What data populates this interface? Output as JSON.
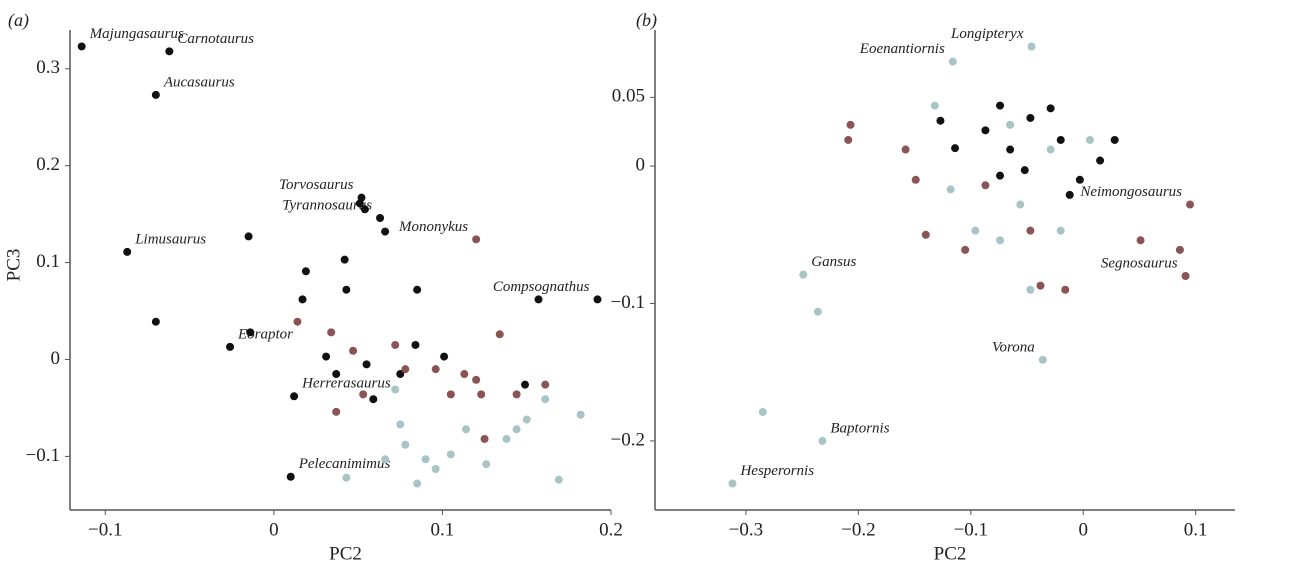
{
  "chart_data": [
    {
      "type": "scatter",
      "panel": "(a)",
      "x_label": "PC2",
      "y_label": "PC3",
      "xlim": [
        -0.115,
        0.2
      ],
      "ylim": [
        -0.145,
        0.34
      ],
      "xticks": [
        {
          "value": -0.1,
          "label": "−0.1"
        },
        0,
        0.1,
        0.2
      ],
      "yticks": [
        {
          "value": -0.1,
          "label": "−0.1"
        },
        0,
        0.1,
        0.2,
        0.3
      ],
      "series": [
        {
          "color": "#111111",
          "x": [
            -0.114,
            -0.062,
            -0.07,
            -0.087,
            0.052,
            0.063,
            0.192,
            -0.026,
            0.012,
            0.01,
            -0.015,
            0.051,
            0.054,
            0.066,
            0.019,
            0.042,
            0.085,
            0.043,
            0.017,
            -0.07,
            -0.014,
            0.031,
            0.055,
            0.084,
            0.101,
            0.059,
            0.157,
            0.149,
            0.037,
            0.075
          ],
          "y": [
            0.323,
            0.318,
            0.273,
            0.111,
            0.167,
            0.146,
            0.062,
            0.013,
            -0.038,
            -0.121,
            0.127,
            0.161,
            0.155,
            0.132,
            0.091,
            0.103,
            0.072,
            0.072,
            0.062,
            0.039,
            0.028,
            0.003,
            -0.005,
            0.015,
            0.003,
            -0.041,
            0.062,
            -0.026,
            -0.015,
            -0.015
          ],
          "labels": [
            "Majungasaurus",
            "Carnotaurus",
            "Aucasaurus",
            "Limusaurus",
            "Torvosaurus",
            "Tyrannosaurus",
            "Compsognathus",
            "Eoraptor",
            "Herrerasaurus",
            "Pelecanimimus",
            null,
            null,
            null,
            null,
            null,
            null,
            null,
            null,
            null,
            null,
            null,
            null,
            null,
            null,
            null,
            null,
            null,
            null,
            null,
            null
          ]
        },
        {
          "color": "#8a5454",
          "x": [
            0.12,
            0.014,
            0.034,
            0.047,
            0.072,
            0.096,
            0.113,
            0.134,
            0.161,
            0.037,
            0.053,
            0.078,
            0.123,
            0.12,
            0.144,
            0.125,
            0.105
          ],
          "y": [
            0.124,
            0.039,
            0.028,
            0.009,
            0.015,
            -0.01,
            -0.015,
            0.026,
            -0.026,
            -0.054,
            -0.036,
            -0.01,
            -0.036,
            -0.021,
            -0.036,
            -0.082,
            -0.036
          ],
          "labels": [
            "Mononykus",
            null,
            null,
            null,
            null,
            null,
            null,
            null,
            null,
            null,
            null,
            null,
            null,
            null,
            null,
            null,
            null
          ]
        },
        {
          "color": "#a9c4c6",
          "x": [
            0.043,
            0.085,
            0.169,
            0.182,
            0.075,
            0.072,
            0.078,
            0.09,
            0.114,
            0.138,
            0.15,
            0.161,
            0.105,
            0.066,
            0.126,
            0.144,
            0.096
          ],
          "y": [
            -0.122,
            -0.128,
            -0.124,
            -0.057,
            -0.067,
            -0.031,
            -0.088,
            -0.103,
            -0.072,
            -0.082,
            -0.062,
            -0.041,
            -0.098,
            -0.103,
            -0.108,
            -0.072,
            -0.113
          ],
          "labels": [
            null,
            null,
            null,
            null,
            null,
            null,
            null,
            null,
            null,
            null,
            null,
            null,
            null,
            null,
            null,
            null,
            null
          ]
        }
      ]
    },
    {
      "type": "scatter",
      "panel": "(b)",
      "x_label": "PC2",
      "xlim": [
        -0.372,
        0.135
      ],
      "ylim": [
        -0.243,
        0.099
      ],
      "xticks": [
        {
          "value": -0.3,
          "label": "−0.3"
        },
        {
          "value": -0.2,
          "label": "−0.2"
        },
        {
          "value": -0.1,
          "label": "−0.1"
        },
        0,
        0.1
      ],
      "yticks": [
        {
          "value": -0.2,
          "label": "−0.2"
        },
        {
          "value": -0.1,
          "label": "−0.1"
        },
        0,
        0.05
      ],
      "series": [
        {
          "color": "#111111",
          "x": [
            -0.074,
            -0.047,
            -0.02,
            -0.074,
            -0.114,
            -0.127,
            0.015,
            0.028,
            -0.003,
            -0.029,
            -0.065,
            -0.087,
            -0.012,
            -0.052
          ],
          "y": [
            0.044,
            0.035,
            0.019,
            -0.007,
            0.013,
            0.033,
            0.004,
            0.019,
            -0.01,
            0.042,
            0.012,
            0.026,
            -0.021,
            -0.003
          ],
          "labels": [
            null,
            null,
            null,
            null,
            null,
            null,
            null,
            null,
            null,
            null,
            null,
            null,
            null,
            null
          ]
        },
        {
          "color": "#8a5454",
          "x": [
            0.095,
            0.091,
            -0.207,
            -0.209,
            -0.149,
            -0.158,
            -0.14,
            -0.105,
            -0.038,
            -0.016,
            0.051,
            0.086,
            -0.047,
            -0.087
          ],
          "y": [
            -0.028,
            -0.08,
            0.03,
            0.019,
            -0.01,
            0.012,
            -0.05,
            -0.061,
            -0.087,
            -0.09,
            -0.054,
            -0.061,
            -0.047,
            -0.014
          ],
          "labels": [
            "Neimongosaurus",
            "Segnosaurus",
            null,
            null,
            null,
            null,
            null,
            null,
            null,
            null,
            null,
            null,
            null,
            null
          ]
        },
        {
          "color": "#a9c4c6",
          "x": [
            -0.116,
            -0.046,
            -0.249,
            -0.312,
            -0.232,
            -0.036,
            -0.236,
            -0.285,
            -0.132,
            -0.118,
            -0.096,
            -0.056,
            -0.02,
            -0.047,
            -0.029,
            -0.065,
            -0.074,
            0.006
          ],
          "y": [
            0.076,
            0.087,
            -0.079,
            -0.231,
            -0.2,
            -0.141,
            -0.106,
            -0.179,
            0.044,
            -0.017,
            -0.047,
            -0.028,
            -0.047,
            -0.09,
            0.012,
            0.03,
            -0.054,
            0.019
          ],
          "labels": [
            "Eoenantiornis",
            "Longipteryx",
            "Gansus",
            "Hesperornis",
            "Baptornis",
            "Vorona",
            null,
            null,
            null,
            null,
            null,
            null,
            null,
            null,
            null,
            null,
            null,
            null
          ]
        }
      ]
    }
  ]
}
